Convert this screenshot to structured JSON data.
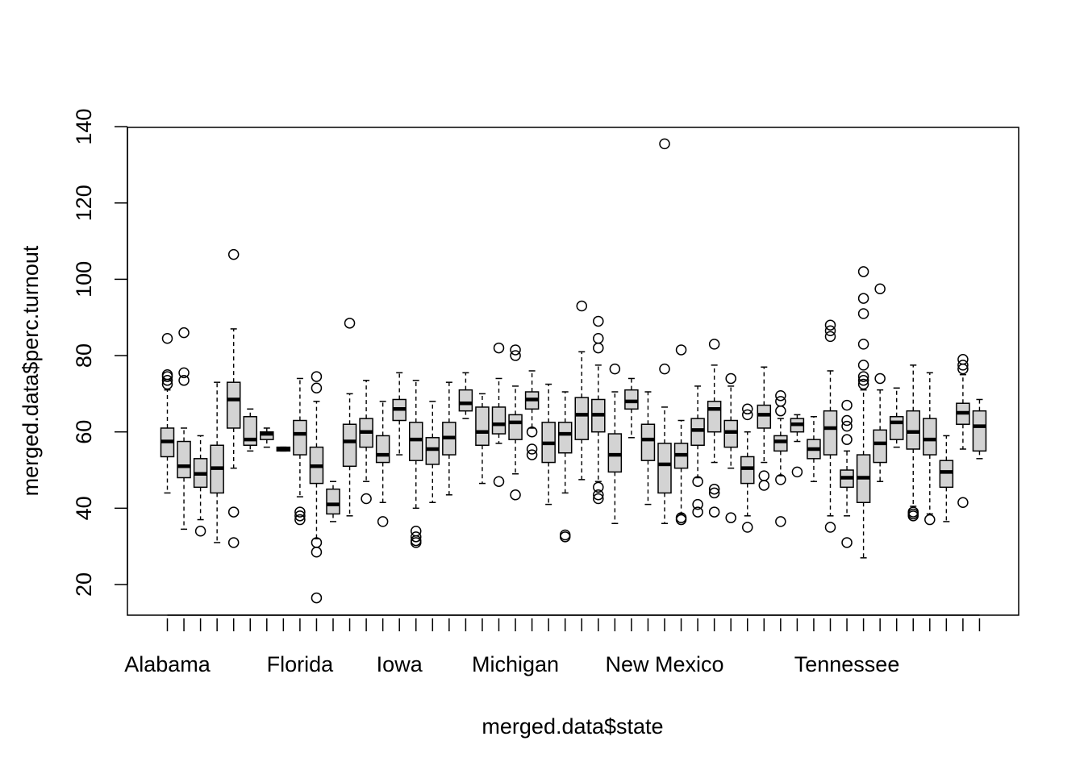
{
  "chart_data": {
    "type": "box",
    "xlabel": "merged.data$state",
    "ylabel": "merged.data$perc.turnout",
    "ylim": [
      12,
      141
    ],
    "yticks": [
      20,
      40,
      60,
      80,
      100,
      120,
      140
    ],
    "x_tick_labels": [
      {
        "label": "Alabama",
        "index": 1
      },
      {
        "label": "Florida",
        "index": 9
      },
      {
        "label": "Iowa",
        "index": 15
      },
      {
        "label": "Michigan",
        "index": 22
      },
      {
        "label": "New Mexico",
        "index": 31
      },
      {
        "label": "Tennessee",
        "index": 42
      }
    ],
    "boxes": [
      {
        "q1": 53.5,
        "med": 57.5,
        "q3": 61,
        "wlo": 44,
        "whi": 71,
        "out": [
          72.5,
          73.5,
          74.5,
          75,
          84.5
        ]
      },
      {
        "q1": 48,
        "med": 51,
        "q3": 57.5,
        "wlo": 34.5,
        "whi": 61,
        "out": [
          73.5,
          75.5,
          86
        ]
      },
      {
        "q1": 45.5,
        "med": 49,
        "q3": 53,
        "wlo": 37,
        "whi": 59,
        "out": [
          34
        ]
      },
      {
        "q1": 44,
        "med": 50.5,
        "q3": 56.5,
        "wlo": 31,
        "whi": 73,
        "out": []
      },
      {
        "q1": 61,
        "med": 68.5,
        "q3": 73,
        "wlo": 50.5,
        "whi": 87,
        "out": [
          106.5,
          39,
          31
        ]
      },
      {
        "q1": 56.5,
        "med": 58,
        "q3": 64,
        "wlo": 55,
        "whi": 66,
        "out": []
      },
      {
        "q1": 58,
        "med": 59.5,
        "q3": 60,
        "wlo": 56,
        "whi": 61,
        "out": []
      },
      {
        "q1": 55,
        "med": 55.5,
        "q3": 56,
        "wlo": 55,
        "whi": 56,
        "out": []
      },
      {
        "q1": 54,
        "med": 59.5,
        "q3": 63,
        "wlo": 43,
        "whi": 74,
        "out": [
          39,
          38,
          37
        ]
      },
      {
        "q1": 46.5,
        "med": 51,
        "q3": 56,
        "wlo": 32,
        "whi": 68,
        "out": [
          74.5,
          71.5,
          31,
          28.5,
          16.5
        ]
      },
      {
        "q1": 38.5,
        "med": 41,
        "q3": 45,
        "wlo": 36.5,
        "whi": 47,
        "out": []
      },
      {
        "q1": 51,
        "med": 57.5,
        "q3": 62,
        "wlo": 38,
        "whi": 70,
        "out": [
          88.5
        ]
      },
      {
        "q1": 56,
        "med": 60,
        "q3": 63.5,
        "wlo": 47,
        "whi": 73.5,
        "out": [
          42.5
        ]
      },
      {
        "q1": 52,
        "med": 54,
        "q3": 59,
        "wlo": 41.5,
        "whi": 68,
        "out": [
          36.5
        ]
      },
      {
        "q1": 63,
        "med": 66,
        "q3": 68.5,
        "wlo": 54,
        "whi": 75.5,
        "out": []
      },
      {
        "q1": 52.5,
        "med": 58,
        "q3": 62.5,
        "wlo": 40,
        "whi": 73.5,
        "out": [
          34,
          32.5,
          31.5,
          31
        ]
      },
      {
        "q1": 51.5,
        "med": 55.5,
        "q3": 58.5,
        "wlo": 41.5,
        "whi": 68,
        "out": []
      },
      {
        "q1": 54,
        "med": 58.5,
        "q3": 62.5,
        "wlo": 43.5,
        "whi": 73,
        "out": []
      },
      {
        "q1": 65.5,
        "med": 67.5,
        "q3": 71,
        "wlo": 63.5,
        "whi": 75.5,
        "out": []
      },
      {
        "q1": 56.5,
        "med": 60,
        "q3": 66.5,
        "wlo": 46.5,
        "whi": 70,
        "out": []
      },
      {
        "q1": 59.5,
        "med": 62,
        "q3": 66.5,
        "wlo": 57,
        "whi": 74,
        "out": [
          82,
          47
        ]
      },
      {
        "q1": 58,
        "med": 62.5,
        "q3": 64.5,
        "wlo": 49,
        "whi": 72,
        "out": [
          81.5,
          80,
          43.5
        ]
      },
      {
        "q1": 66,
        "med": 68.5,
        "q3": 70.5,
        "wlo": 61,
        "whi": 76,
        "out": [
          60,
          55.5,
          54
        ]
      },
      {
        "q1": 52,
        "med": 57,
        "q3": 62.5,
        "wlo": 41,
        "whi": 72.5,
        "out": []
      },
      {
        "q1": 54.5,
        "med": 59.5,
        "q3": 62.5,
        "wlo": 44,
        "whi": 70.5,
        "out": [
          33,
          32.5
        ]
      },
      {
        "q1": 58,
        "med": 64.5,
        "q3": 69,
        "wlo": 47.5,
        "whi": 81,
        "out": [
          93
        ]
      },
      {
        "q1": 60,
        "med": 64.5,
        "q3": 68.5,
        "wlo": 47,
        "whi": 77.5,
        "out": [
          89,
          84.5,
          82,
          45.5,
          43.5,
          42.5
        ]
      },
      {
        "q1": 49.5,
        "med": 54,
        "q3": 59.5,
        "wlo": 36,
        "whi": 70.5,
        "out": [
          76.5
        ]
      },
      {
        "q1": 66,
        "med": 68,
        "q3": 71,
        "wlo": 58.5,
        "whi": 74,
        "out": []
      },
      {
        "q1": 52.5,
        "med": 58,
        "q3": 62,
        "wlo": 41,
        "whi": 70.5,
        "out": []
      },
      {
        "q1": 44,
        "med": 51.5,
        "q3": 57,
        "wlo": 36,
        "whi": 66.5,
        "out": [
          76.5,
          135.5
        ]
      },
      {
        "q1": 50.5,
        "med": 54,
        "q3": 57,
        "wlo": 38.5,
        "whi": 63,
        "out": [
          81.5,
          37.5,
          37
        ]
      },
      {
        "q1": 56.5,
        "med": 60.5,
        "q3": 63.5,
        "wlo": 48,
        "whi": 72,
        "out": [
          47,
          41,
          39
        ]
      },
      {
        "q1": 60,
        "med": 66,
        "q3": 68,
        "wlo": 52,
        "whi": 77.5,
        "out": [
          83,
          45,
          44,
          39
        ]
      },
      {
        "q1": 56,
        "med": 60,
        "q3": 63,
        "wlo": 50.5,
        "whi": 72,
        "out": [
          74,
          37.5
        ]
      },
      {
        "q1": 46.5,
        "med": 50.5,
        "q3": 53.5,
        "wlo": 38,
        "whi": 60,
        "out": [
          66,
          64.5,
          35
        ]
      },
      {
        "q1": 61,
        "med": 64.5,
        "q3": 67,
        "wlo": 52,
        "whi": 77,
        "out": [
          48.5,
          46
        ]
      },
      {
        "q1": 55,
        "med": 57.5,
        "q3": 59,
        "wlo": 48.5,
        "whi": 63.5,
        "out": [
          69.5,
          68,
          65.5,
          47.5,
          36.5
        ]
      },
      {
        "q1": 60,
        "med": 62,
        "q3": 63.5,
        "wlo": 57.5,
        "whi": 64.5,
        "out": [
          49.5
        ]
      },
      {
        "q1": 53,
        "med": 55.5,
        "q3": 58,
        "wlo": 47,
        "whi": 64,
        "out": []
      },
      {
        "q1": 54,
        "med": 61,
        "q3": 65.5,
        "wlo": 38,
        "whi": 76,
        "out": [
          88,
          86.5,
          85,
          35
        ]
      },
      {
        "q1": 45.5,
        "med": 48,
        "q3": 50,
        "wlo": 38,
        "whi": 55,
        "out": [
          67,
          63,
          61.5,
          58,
          31
        ]
      },
      {
        "q1": 41.5,
        "med": 48,
        "q3": 54,
        "wlo": 27,
        "whi": 71,
        "out": [
          102,
          95,
          91,
          83,
          77.5,
          74.5,
          73.5,
          72.5
        ]
      },
      {
        "q1": 52,
        "med": 57,
        "q3": 60.5,
        "wlo": 47,
        "whi": 71,
        "out": [
          97.5,
          74
        ]
      },
      {
        "q1": 58,
        "med": 62.5,
        "q3": 64,
        "wlo": 56,
        "whi": 71.5,
        "out": []
      },
      {
        "q1": 55.5,
        "med": 60,
        "q3": 65.5,
        "wlo": 40.5,
        "whi": 77.5,
        "out": [
          39,
          38.5,
          38
        ]
      },
      {
        "q1": 54,
        "med": 58,
        "q3": 63.5,
        "wlo": 38.5,
        "whi": 75.5,
        "out": [
          37
        ]
      },
      {
        "q1": 45.5,
        "med": 49.5,
        "q3": 52.5,
        "wlo": 36.5,
        "whi": 59,
        "out": []
      },
      {
        "q1": 62,
        "med": 65,
        "q3": 67.5,
        "wlo": 55.5,
        "whi": 75,
        "out": [
          79,
          77.5,
          76.5,
          41.5
        ]
      },
      {
        "q1": 55,
        "med": 61.5,
        "q3": 65.5,
        "wlo": 53,
        "whi": 68.5,
        "out": []
      }
    ]
  }
}
